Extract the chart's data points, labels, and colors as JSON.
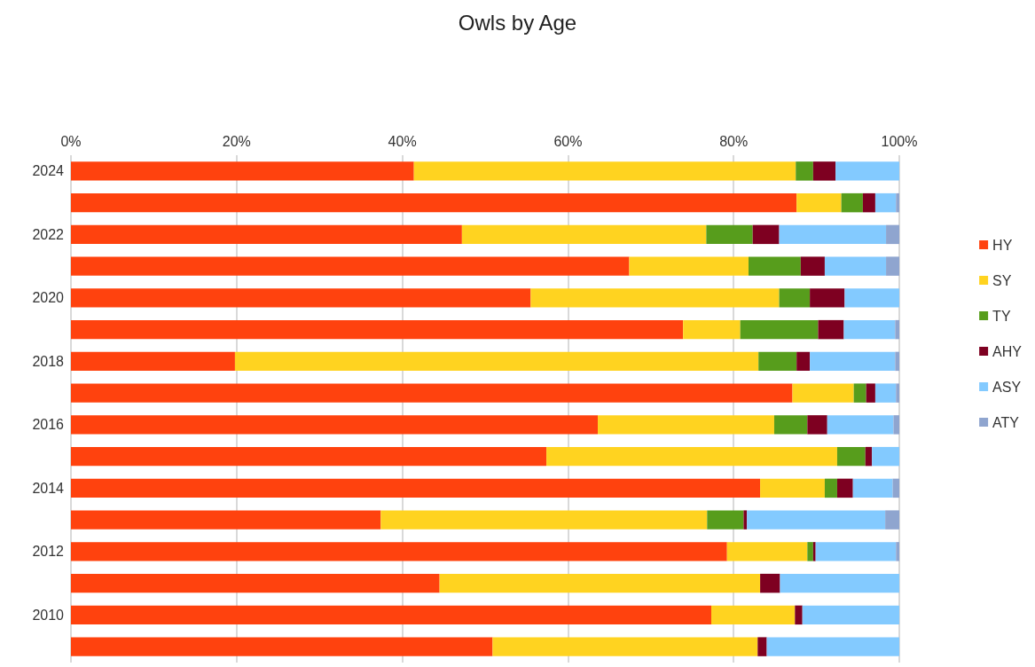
{
  "chart_data": {
    "type": "bar",
    "title": "Owls by Age",
    "orientation": "horizontal",
    "stacked": true,
    "categories": [
      "2024",
      null,
      "2022",
      null,
      "2020",
      null,
      "2018",
      null,
      "2016",
      null,
      "2014",
      null,
      "2012",
      null,
      "2010",
      null
    ],
    "series": [
      {
        "name": "HY",
        "color": "#ff420e",
        "values": [
          41.4,
          87.6,
          47.2,
          67.4,
          55.5,
          73.9,
          19.8,
          87.1,
          63.6,
          57.4,
          83.2,
          37.4,
          79.2,
          44.5,
          77.3,
          50.9
        ]
      },
      {
        "name": "SY",
        "color": "#ffd320",
        "values": [
          46.1,
          5.4,
          29.5,
          14.4,
          30.0,
          6.9,
          63.2,
          7.4,
          21.3,
          35.1,
          7.8,
          39.4,
          9.7,
          38.7,
          10.1,
          32.0
        ]
      },
      {
        "name": "TY",
        "color": "#579d1c",
        "values": [
          2.1,
          2.6,
          5.6,
          6.3,
          3.7,
          9.4,
          4.6,
          1.5,
          4.0,
          3.4,
          1.5,
          4.4,
          0.7,
          0,
          0,
          0
        ]
      },
      {
        "name": "AHY",
        "color": "#7e0021",
        "values": [
          2.7,
          1.5,
          3.2,
          2.9,
          4.2,
          3.1,
          1.6,
          1.1,
          2.4,
          0.8,
          1.9,
          0.4,
          0.3,
          2.4,
          0.9,
          1.1
        ]
      },
      {
        "name": "ASY",
        "color": "#83caff",
        "values": [
          7.7,
          2.5,
          12.9,
          7.4,
          6.6,
          6.2,
          10.3,
          2.5,
          8.0,
          3.3,
          4.8,
          16.7,
          9.7,
          14.4,
          11.7,
          16.0
        ]
      },
      {
        "name": "ATY",
        "color": "#8fa5cf",
        "values": [
          0,
          0.4,
          1.6,
          1.6,
          0,
          0.5,
          0.5,
          0.4,
          0.7,
          0,
          0.8,
          1.7,
          0.4,
          0,
          0,
          0
        ]
      }
    ],
    "xlim": [
      0,
      100
    ],
    "xticks": [
      {
        "value": 0,
        "label": "0%"
      },
      {
        "value": 20,
        "label": "20%"
      },
      {
        "value": 40,
        "label": "40%"
      },
      {
        "value": 60,
        "label": "60%"
      },
      {
        "value": 80,
        "label": "80%"
      },
      {
        "value": 100,
        "label": "100%"
      }
    ],
    "grid": "x",
    "legend": "right"
  }
}
